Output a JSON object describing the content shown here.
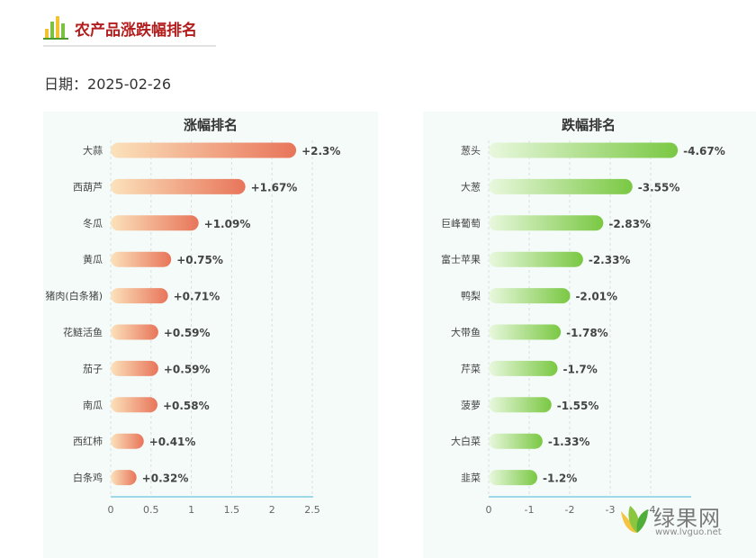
{
  "header": {
    "title": "农产品涨跌幅排名",
    "date_label": "日期：",
    "date_value": "2025-02-26"
  },
  "watermark": {
    "brand": "绿果网",
    "url": "www.lvguo.net"
  },
  "colors": {
    "rise_bar_start": "#fbe2bb",
    "rise_bar_end": "#e8755a",
    "fall_bar_start": "#e9f8de",
    "fall_bar_end": "#7ac843",
    "axis_line": "#9fd8e8",
    "title_red": "#b31d1d"
  },
  "chart_data": [
    {
      "type": "bar",
      "orientation": "horizontal",
      "title": "涨幅排名",
      "categories": [
        "大蒜",
        "西葫芦",
        "冬瓜",
        "黄瓜",
        "猪肉(白条猪)",
        "花鲢活鱼",
        "茄子",
        "南瓜",
        "西红柿",
        "白条鸡"
      ],
      "values": [
        2.3,
        1.67,
        1.09,
        0.75,
        0.71,
        0.59,
        0.59,
        0.58,
        0.41,
        0.32
      ],
      "labels": [
        "+2.3%",
        "+1.67%",
        "+1.09%",
        "+0.75%",
        "+0.71%",
        "+0.59%",
        "+0.59%",
        "+0.58%",
        "+0.41%",
        "+0.32%"
      ],
      "xlim": [
        0,
        2.5
      ],
      "xticks": [
        "0",
        "0.5",
        "1",
        "1.5",
        "2",
        "2.5"
      ],
      "grid": true
    },
    {
      "type": "bar",
      "orientation": "horizontal",
      "title": "跌幅排名",
      "categories": [
        "葱头",
        "大葱",
        "巨峰葡萄",
        "富士苹果",
        "鸭梨",
        "大带鱼",
        "芹菜",
        "菠萝",
        "大白菜",
        "韭菜"
      ],
      "values": [
        -4.67,
        -3.55,
        -2.83,
        -2.33,
        -2.01,
        -1.78,
        -1.7,
        -1.55,
        -1.33,
        -1.2
      ],
      "labels": [
        "-4.67%",
        "-3.55%",
        "-2.83%",
        "-2.33%",
        "-2.01%",
        "-1.78%",
        "-1.7%",
        "-1.55%",
        "-1.33%",
        "-1.2%"
      ],
      "xlim": [
        0,
        -5
      ],
      "xticks": [
        "0",
        "-1",
        "-2",
        "-3",
        "-4"
      ],
      "grid": true
    }
  ]
}
